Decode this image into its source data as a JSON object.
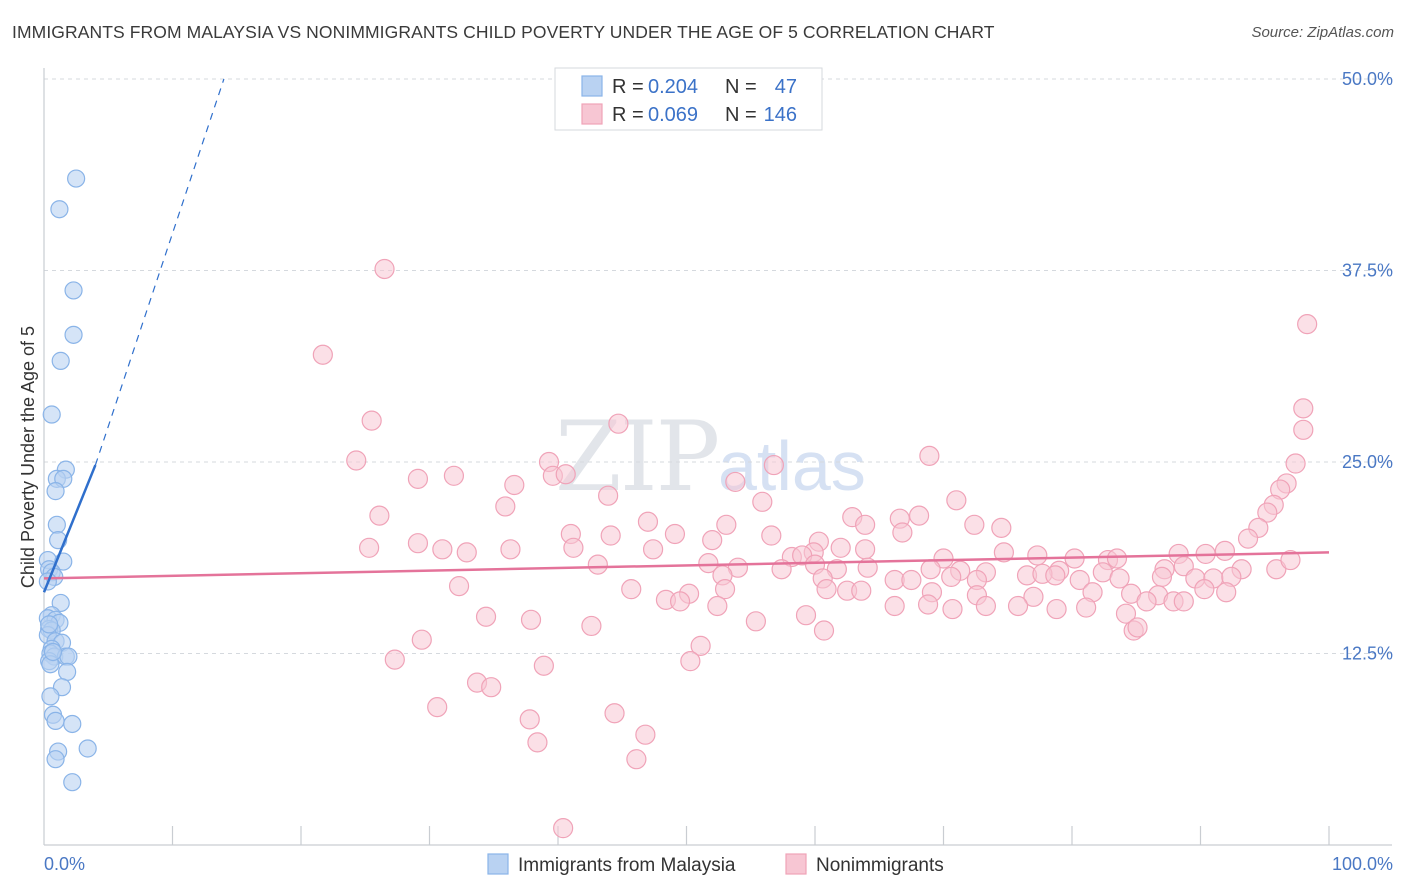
{
  "title": "IMMIGRANTS FROM MALAYSIA VS NONIMMIGRANTS CHILD POVERTY UNDER THE AGE OF 5 CORRELATION CHART",
  "source": "Source: ZipAtlas.com",
  "watermark": {
    "zip": "ZIP",
    "atlas": "atlas"
  },
  "colors": {
    "blue": "#8ab4e8",
    "blue_fill": "#b9d2f2",
    "blue_line": "#2f6fcc",
    "pink": "#f0a3b8",
    "pink_fill": "#f7c6d3",
    "pink_line": "#e4739a",
    "grid": "#d5d9de",
    "tick_label": "#4a78c4"
  },
  "legend_top": {
    "rows": [
      {
        "r_label": "R =",
        "r_value": "0.204",
        "n_label": "N =",
        "n_value": "47"
      },
      {
        "r_label": "R =",
        "r_value": "0.069",
        "n_label": "N =",
        "n_value": "146"
      }
    ]
  },
  "legend_bottom": {
    "series1": "Immigrants from Malaysia",
    "series2": "Nonimmigrants"
  },
  "chart_data": {
    "type": "scatter",
    "title": "IMMIGRANTS FROM MALAYSIA VS NONIMMIGRANTS CHILD POVERTY UNDER THE AGE OF 5 CORRELATION CHART",
    "xlabel": "",
    "ylabel": "Child Poverty Under the Age of 5",
    "xlim": [
      0,
      100
    ],
    "ylim": [
      0,
      50
    ],
    "x_tick_labels": [
      "0.0%",
      "100.0%"
    ],
    "y_ticks": [
      12.5,
      25.0,
      37.5,
      50.0
    ],
    "y_tick_labels": [
      "12.5%",
      "25.0%",
      "37.5%",
      "50.0%"
    ],
    "series": [
      {
        "name": "Immigrants from Malaysia",
        "R": 0.204,
        "N": 47,
        "trend": {
          "x": [
            0.0,
            4.0
          ],
          "y": [
            16.5,
            24.8
          ],
          "dashed_to": [
            14.0,
            50.0
          ]
        },
        "points": [
          [
            2.5,
            43.5
          ],
          [
            1.2,
            41.5
          ],
          [
            2.3,
            36.2
          ],
          [
            2.3,
            33.3
          ],
          [
            1.3,
            31.6
          ],
          [
            0.6,
            28.1
          ],
          [
            1.7,
            24.5
          ],
          [
            1.0,
            23.9
          ],
          [
            1.5,
            23.9
          ],
          [
            0.9,
            23.1
          ],
          [
            1.0,
            20.9
          ],
          [
            1.1,
            19.9
          ],
          [
            0.3,
            18.6
          ],
          [
            1.5,
            18.5
          ],
          [
            0.4,
            18.0
          ],
          [
            0.6,
            17.8
          ],
          [
            0.8,
            17.5
          ],
          [
            0.3,
            17.2
          ],
          [
            1.3,
            15.8
          ],
          [
            0.6,
            15.0
          ],
          [
            0.3,
            14.8
          ],
          [
            0.9,
            14.7
          ],
          [
            1.2,
            14.5
          ],
          [
            0.4,
            14.1
          ],
          [
            0.6,
            14.0
          ],
          [
            0.3,
            13.7
          ],
          [
            0.9,
            13.3
          ],
          [
            1.4,
            13.2
          ],
          [
            0.6,
            12.8
          ],
          [
            0.5,
            12.5
          ],
          [
            0.8,
            12.3
          ],
          [
            1.7,
            12.3
          ],
          [
            1.9,
            12.3
          ],
          [
            0.4,
            12.0
          ],
          [
            0.5,
            11.8
          ],
          [
            1.8,
            11.3
          ],
          [
            1.4,
            10.3
          ],
          [
            0.5,
            9.7
          ],
          [
            0.7,
            8.5
          ],
          [
            0.9,
            8.1
          ],
          [
            2.2,
            7.9
          ],
          [
            1.1,
            6.1
          ],
          [
            3.4,
            6.3
          ],
          [
            0.9,
            5.6
          ],
          [
            2.2,
            4.1
          ],
          [
            0.4,
            14.4
          ],
          [
            0.7,
            12.6
          ]
        ]
      },
      {
        "name": "Nonimmigrants",
        "R": 0.069,
        "N": 146,
        "trend": {
          "x": [
            0.0,
            100.0
          ],
          "y": [
            17.4,
            19.1
          ]
        },
        "points": [
          [
            26.5,
            37.6
          ],
          [
            21.7,
            32.0
          ],
          [
            25.5,
            27.7
          ],
          [
            44.7,
            27.5
          ],
          [
            68.9,
            25.4
          ],
          [
            24.3,
            25.1
          ],
          [
            39.3,
            25.0
          ],
          [
            56.8,
            24.8
          ],
          [
            31.9,
            24.1
          ],
          [
            39.6,
            24.1
          ],
          [
            29.1,
            23.9
          ],
          [
            40.6,
            24.2
          ],
          [
            53.8,
            23.7
          ],
          [
            36.6,
            23.5
          ],
          [
            43.9,
            22.8
          ],
          [
            55.9,
            22.4
          ],
          [
            71.0,
            22.5
          ],
          [
            35.9,
            22.1
          ],
          [
            26.1,
            21.5
          ],
          [
            62.9,
            21.4
          ],
          [
            66.6,
            21.3
          ],
          [
            68.1,
            21.5
          ],
          [
            47.0,
            21.1
          ],
          [
            53.1,
            20.9
          ],
          [
            63.9,
            20.9
          ],
          [
            72.4,
            20.9
          ],
          [
            74.5,
            20.7
          ],
          [
            41.0,
            20.3
          ],
          [
            44.1,
            20.2
          ],
          [
            49.1,
            20.3
          ],
          [
            56.6,
            20.2
          ],
          [
            66.8,
            20.4
          ],
          [
            29.1,
            19.7
          ],
          [
            52.0,
            19.9
          ],
          [
            60.3,
            19.8
          ],
          [
            25.3,
            19.4
          ],
          [
            31.0,
            19.3
          ],
          [
            36.3,
            19.3
          ],
          [
            41.2,
            19.4
          ],
          [
            47.4,
            19.3
          ],
          [
            62.0,
            19.4
          ],
          [
            63.9,
            19.3
          ],
          [
            32.9,
            19.1
          ],
          [
            59.9,
            19.1
          ],
          [
            43.1,
            18.3
          ],
          [
            51.7,
            18.4
          ],
          [
            58.2,
            18.8
          ],
          [
            59.0,
            18.9
          ],
          [
            60.0,
            18.3
          ],
          [
            70.0,
            18.7
          ],
          [
            74.7,
            19.1
          ],
          [
            77.3,
            18.9
          ],
          [
            80.2,
            18.7
          ],
          [
            82.8,
            18.6
          ],
          [
            83.5,
            18.7
          ],
          [
            87.2,
            18.0
          ],
          [
            88.3,
            19.0
          ],
          [
            90.4,
            19.0
          ],
          [
            91.9,
            19.2
          ],
          [
            54.0,
            18.1
          ],
          [
            57.4,
            18.0
          ],
          [
            61.7,
            18.0
          ],
          [
            64.1,
            18.1
          ],
          [
            69.0,
            18.0
          ],
          [
            71.3,
            17.9
          ],
          [
            73.3,
            17.8
          ],
          [
            76.5,
            17.6
          ],
          [
            79.0,
            17.9
          ],
          [
            82.4,
            17.8
          ],
          [
            88.7,
            18.2
          ],
          [
            93.2,
            18.0
          ],
          [
            95.9,
            18.0
          ],
          [
            52.8,
            17.6
          ],
          [
            60.6,
            17.4
          ],
          [
            66.2,
            17.3
          ],
          [
            67.5,
            17.3
          ],
          [
            70.6,
            17.5
          ],
          [
            72.6,
            17.3
          ],
          [
            77.7,
            17.7
          ],
          [
            78.7,
            17.6
          ],
          [
            80.6,
            17.3
          ],
          [
            83.7,
            17.4
          ],
          [
            87.0,
            17.5
          ],
          [
            89.6,
            17.4
          ],
          [
            91.0,
            17.4
          ],
          [
            92.4,
            17.5
          ],
          [
            32.3,
            16.9
          ],
          [
            45.7,
            16.7
          ],
          [
            50.2,
            16.4
          ],
          [
            53.0,
            16.7
          ],
          [
            60.9,
            16.7
          ],
          [
            62.5,
            16.6
          ],
          [
            63.6,
            16.6
          ],
          [
            69.1,
            16.5
          ],
          [
            72.6,
            16.3
          ],
          [
            77.0,
            16.2
          ],
          [
            81.6,
            16.5
          ],
          [
            84.6,
            16.4
          ],
          [
            86.7,
            16.3
          ],
          [
            90.3,
            16.7
          ],
          [
            92.0,
            16.5
          ],
          [
            48.4,
            16.0
          ],
          [
            49.5,
            15.9
          ],
          [
            52.4,
            15.6
          ],
          [
            66.2,
            15.6
          ],
          [
            68.8,
            15.7
          ],
          [
            70.7,
            15.4
          ],
          [
            73.3,
            15.6
          ],
          [
            75.8,
            15.6
          ],
          [
            78.8,
            15.4
          ],
          [
            81.1,
            15.5
          ],
          [
            85.8,
            15.9
          ],
          [
            87.9,
            15.9
          ],
          [
            88.7,
            15.9
          ],
          [
            34.4,
            14.9
          ],
          [
            37.9,
            14.7
          ],
          [
            42.6,
            14.3
          ],
          [
            55.4,
            14.6
          ],
          [
            59.3,
            15.0
          ],
          [
            60.7,
            14.0
          ],
          [
            84.2,
            15.1
          ],
          [
            84.8,
            14.0
          ],
          [
            85.1,
            14.2
          ],
          [
            29.4,
            13.4
          ],
          [
            51.1,
            13.0
          ],
          [
            27.3,
            12.1
          ],
          [
            50.3,
            12.0
          ],
          [
            38.9,
            11.7
          ],
          [
            33.7,
            10.6
          ],
          [
            34.8,
            10.3
          ],
          [
            30.6,
            9.0
          ],
          [
            37.8,
            8.2
          ],
          [
            44.4,
            8.6
          ],
          [
            38.4,
            6.7
          ],
          [
            46.8,
            7.2
          ],
          [
            46.1,
            5.6
          ],
          [
            40.4,
            1.1
          ],
          [
            98.3,
            34.0
          ],
          [
            98.0,
            28.5
          ],
          [
            98.0,
            27.1
          ],
          [
            97.4,
            24.9
          ],
          [
            96.7,
            23.6
          ],
          [
            96.2,
            23.2
          ],
          [
            95.7,
            22.2
          ],
          [
            95.2,
            21.7
          ],
          [
            94.5,
            20.7
          ],
          [
            93.7,
            20.0
          ],
          [
            97.0,
            18.6
          ]
        ]
      }
    ]
  }
}
